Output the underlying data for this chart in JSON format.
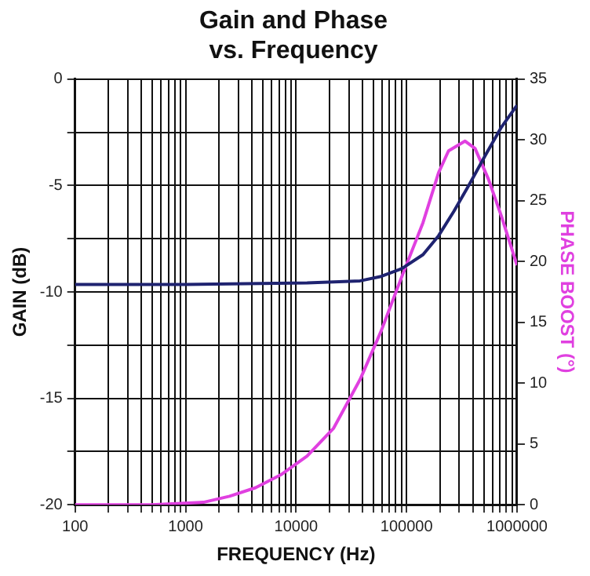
{
  "chart_data": {
    "type": "line",
    "title": "Gain and Phase\nvs. Frequency",
    "xlabel": "FREQUENCY (Hz)",
    "ylabel": "GAIN (dB)",
    "y2label": "PHASE BOOST (°)",
    "log": "x",
    "grid": true,
    "legend": false,
    "marker": "none",
    "line_style": "solid",
    "xlim": [
      100,
      1000000
    ],
    "xticks": [
      100,
      {
        "value": 200,
        "label": null
      },
      {
        "value": 300,
        "label": null
      },
      {
        "value": 400,
        "label": null
      },
      {
        "value": 500,
        "label": null
      },
      {
        "value": 600,
        "label": null
      },
      {
        "value": 700,
        "label": null
      },
      {
        "value": 800,
        "label": null
      },
      {
        "value": 900,
        "label": null
      },
      1000,
      {
        "value": 2000,
        "label": null
      },
      {
        "value": 3000,
        "label": null
      },
      {
        "value": 4000,
        "label": null
      },
      {
        "value": 5000,
        "label": null
      },
      {
        "value": 6000,
        "label": null
      },
      {
        "value": 7000,
        "label": null
      },
      {
        "value": 8000,
        "label": null
      },
      {
        "value": 9000,
        "label": null
      },
      10000,
      {
        "value": 20000,
        "label": null
      },
      {
        "value": 30000,
        "label": null
      },
      {
        "value": 40000,
        "label": null
      },
      {
        "value": 50000,
        "label": null
      },
      {
        "value": 60000,
        "label": null
      },
      {
        "value": 70000,
        "label": null
      },
      {
        "value": 80000,
        "label": null
      },
      {
        "value": 90000,
        "label": null
      },
      100000,
      {
        "value": 200000,
        "label": null
      },
      {
        "value": 300000,
        "label": null
      },
      {
        "value": 400000,
        "label": null
      },
      {
        "value": 500000,
        "label": null
      },
      {
        "value": 600000,
        "label": null
      },
      {
        "value": 700000,
        "label": null
      },
      {
        "value": 800000,
        "label": null
      },
      {
        "value": 900000,
        "label": null
      },
      1000000
    ],
    "ylim": [
      -20,
      0
    ],
    "yticks": [
      -20,
      {
        "value": -17.5,
        "label": null
      },
      -15,
      {
        "value": -12.5,
        "label": null
      },
      -10,
      {
        "value": -7.5,
        "label": null
      },
      -5,
      {
        "value": -2.5,
        "label": null
      },
      0
    ],
    "y2lim": [
      0,
      35
    ],
    "y2ticks": [
      0,
      5,
      10,
      15,
      20,
      25,
      30,
      35
    ],
    "series": [
      {
        "color": "#1f2370",
        "x": [
          100,
          1000,
          12600,
          38000,
          59000,
          91000,
          141000,
          195000,
          269000,
          372000,
          525000,
          724000,
          1000000
        ],
        "values": [
          -9.65,
          -9.65,
          -9.58,
          -9.48,
          -9.27,
          -8.9,
          -8.25,
          -7.36,
          -6.2,
          -4.93,
          -3.52,
          -2.25,
          -1.23
        ]
      },
      {
        "color": "#e040e0",
        "axis": "y2",
        "x": [
          100,
          490,
          1450,
          2500,
          4300,
          7400,
          12600,
          21900,
          38000,
          59000,
          91000,
          141000,
          195000,
          240000,
          339000,
          417000,
          550000,
          724000,
          1000000
        ],
        "values": [
          0,
          0,
          0.2,
          0.7,
          1.4,
          2.5,
          4.0,
          6.3,
          10.3,
          14.3,
          18.8,
          23.2,
          27.3,
          29.1,
          29.9,
          29.3,
          26.8,
          23.7,
          19.7
        ]
      }
    ]
  }
}
